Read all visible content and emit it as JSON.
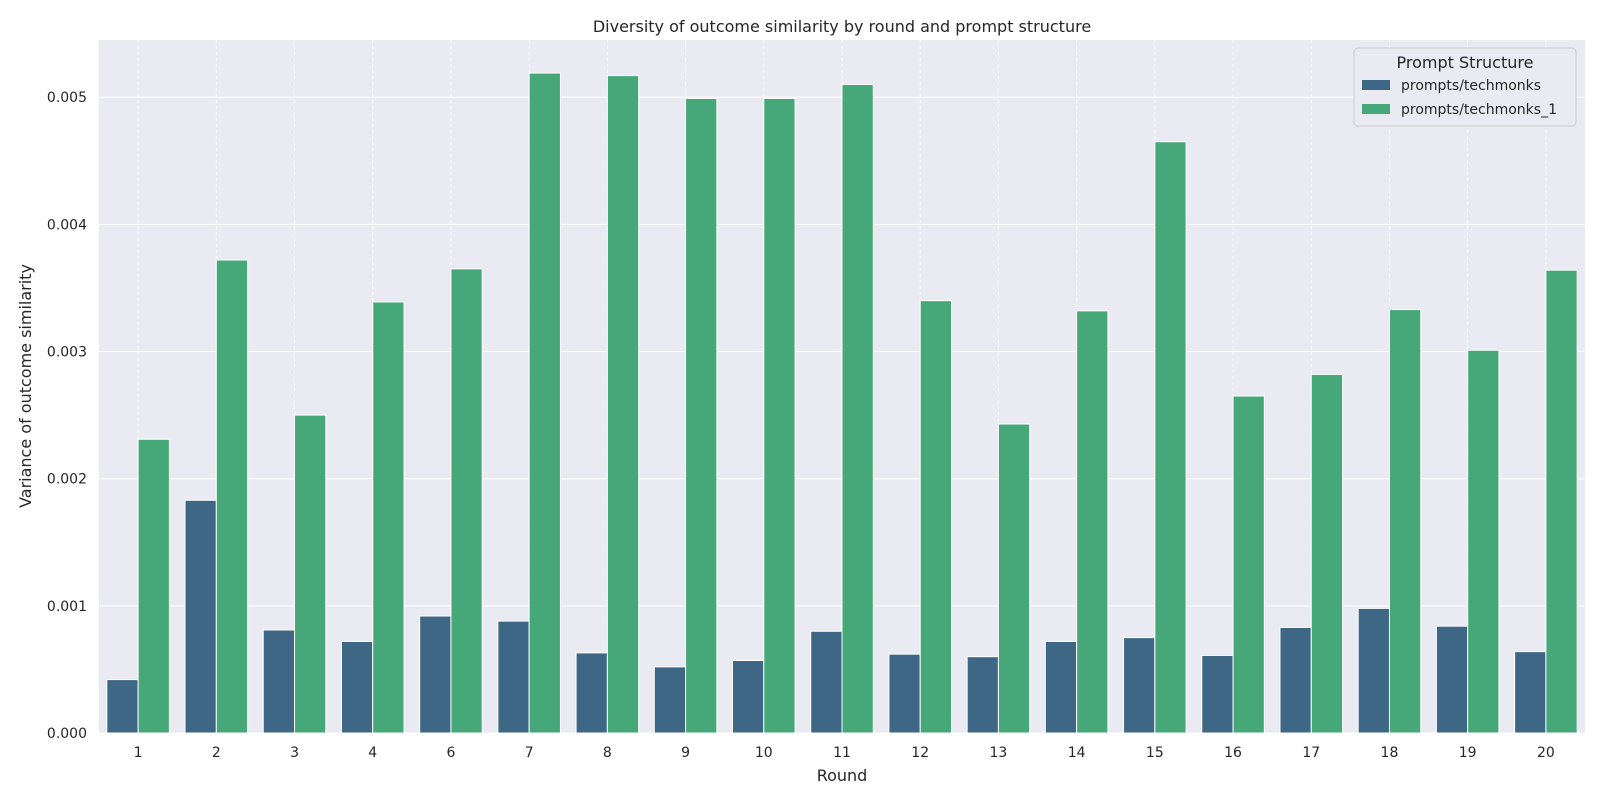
{
  "chart_data": {
    "type": "bar",
    "title": "Diversity of outcome similarity by round and prompt structure",
    "xlabel": "Round",
    "ylabel": "Variance of outcome similarity",
    "categories": [
      "1",
      "2",
      "3",
      "4",
      "6",
      "7",
      "8",
      "9",
      "10",
      "11",
      "12",
      "13",
      "14",
      "15",
      "16",
      "17",
      "18",
      "19",
      "20"
    ],
    "ylim": [
      0,
      0.00545
    ],
    "yticks": [
      "0.000",
      "0.001",
      "0.002",
      "0.003",
      "0.004",
      "0.005"
    ],
    "grid": true,
    "legend": {
      "title": "Prompt Structure",
      "placement": "top-right"
    },
    "series": [
      {
        "name": "prompts/techmonks",
        "color": "#3e6785",
        "values": [
          0.00042,
          0.00183,
          0.00081,
          0.00072,
          0.00092,
          0.00088,
          0.00063,
          0.00052,
          0.00057,
          0.0008,
          0.00062,
          0.0006,
          0.00072,
          0.00075,
          0.00061,
          0.00083,
          0.00098,
          0.00084,
          0.00064
        ]
      },
      {
        "name": "prompts/techmonks_1",
        "color": "#46a878",
        "values": [
          0.00231,
          0.00372,
          0.0025,
          0.00339,
          0.00365,
          0.00519,
          0.00517,
          0.00499,
          0.00499,
          0.0051,
          0.0034,
          0.00243,
          0.00332,
          0.00465,
          0.00265,
          0.00282,
          0.00333,
          0.00301,
          0.00364
        ]
      }
    ]
  }
}
